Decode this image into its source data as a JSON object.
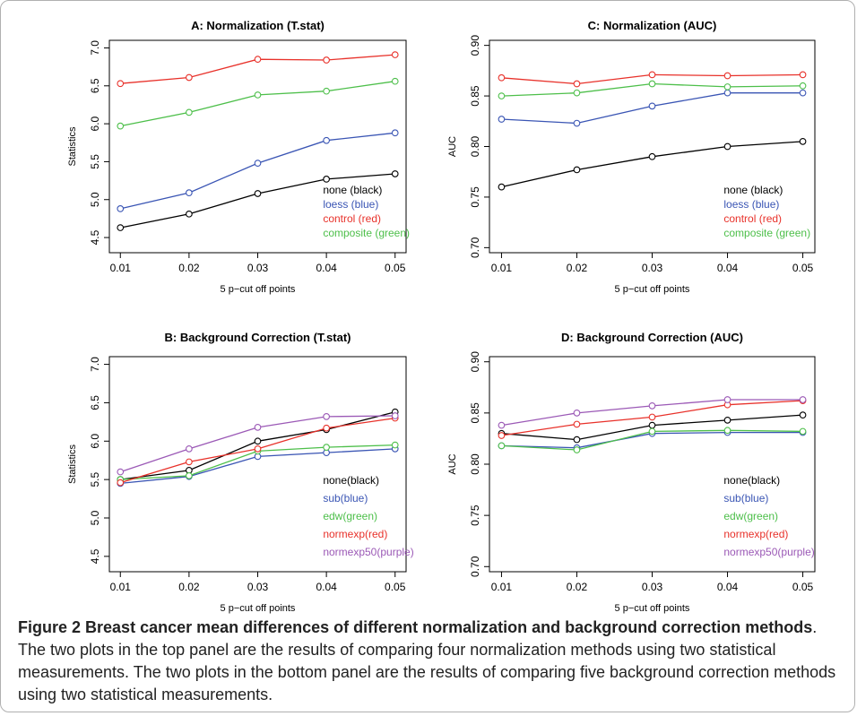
{
  "caption": {
    "label": "Figure 2",
    "title": "Breast cancer mean differences of different normalization and background correction methods",
    "text": ". The two plots in the top panel are the results of comparing four normalization methods using two statistical measurements. The two plots in the bottom panel are the results of comparing five background correction methods using two statistical measurements."
  },
  "chart_data": [
    {
      "type": "line",
      "title": "A: Normalization (T.stat)",
      "xlabel": "5 p−cut off points",
      "ylabel": "Statistics",
      "x": [
        0.01,
        0.02,
        0.03,
        0.04,
        0.05
      ],
      "x_tick_labels": [
        "0.01",
        "0.02",
        "0.03",
        "0.04",
        "0.05"
      ],
      "ylim": [
        4.3,
        7.1
      ],
      "y_ticks": [
        4.5,
        5.0,
        5.5,
        6.0,
        6.5,
        7.0
      ],
      "y_tick_labels": [
        "4.5",
        "5.0",
        "5.5",
        "6.0",
        "6.5",
        "7.0"
      ],
      "legend_position": "bottom-right",
      "series": [
        {
          "name": "none (black)",
          "color": "#000000",
          "values": [
            4.63,
            4.81,
            5.08,
            5.27,
            5.34
          ]
        },
        {
          "name": "loess (blue)",
          "color": "#3a55b4",
          "values": [
            4.88,
            5.09,
            5.48,
            5.78,
            5.88
          ]
        },
        {
          "name": "control (red)",
          "color": "#e8312a",
          "values": [
            6.53,
            6.61,
            6.85,
            6.84,
            6.91
          ]
        },
        {
          "name": "composite (green)",
          "color": "#4dbf4a",
          "values": [
            5.97,
            6.15,
            6.38,
            6.43,
            6.56
          ]
        }
      ]
    },
    {
      "type": "line",
      "title": "C: Normalization (AUC)",
      "xlabel": "5 p−cut off points",
      "ylabel": "AUC",
      "x": [
        0.01,
        0.02,
        0.03,
        0.04,
        0.05
      ],
      "x_tick_labels": [
        "0.01",
        "0.02",
        "0.03",
        "0.04",
        "0.05"
      ],
      "ylim": [
        0.695,
        0.905
      ],
      "y_ticks": [
        0.7,
        0.75,
        0.8,
        0.85,
        0.9
      ],
      "y_tick_labels": [
        "0.70",
        "0.75",
        "0.80",
        "0.85",
        "0.90"
      ],
      "legend_position": "bottom-right",
      "series": [
        {
          "name": "none (black)",
          "color": "#000000",
          "values": [
            0.76,
            0.777,
            0.79,
            0.8,
            0.805
          ]
        },
        {
          "name": "loess (blue)",
          "color": "#3a55b4",
          "values": [
            0.827,
            0.823,
            0.84,
            0.853,
            0.853
          ]
        },
        {
          "name": "control (red)",
          "color": "#e8312a",
          "values": [
            0.868,
            0.862,
            0.871,
            0.87,
            0.871
          ]
        },
        {
          "name": "composite (green)",
          "color": "#4dbf4a",
          "values": [
            0.85,
            0.853,
            0.862,
            0.859,
            0.86
          ]
        }
      ]
    },
    {
      "type": "line",
      "title": "B: Background Correction (T.stat)",
      "xlabel": "5 p−cut off points",
      "ylabel": "Statistics",
      "x": [
        0.01,
        0.02,
        0.03,
        0.04,
        0.05
      ],
      "x_tick_labels": [
        "0.01",
        "0.02",
        "0.03",
        "0.04",
        "0.05"
      ],
      "ylim": [
        4.3,
        7.1
      ],
      "y_ticks": [
        4.5,
        5.0,
        5.5,
        6.0,
        6.5,
        7.0
      ],
      "y_tick_labels": [
        "4.5",
        "5.0",
        "5.5",
        "6.0",
        "6.5",
        "7.0"
      ],
      "legend_position": "bottom-right",
      "series": [
        {
          "name": "none(black)",
          "color": "#000000",
          "values": [
            5.5,
            5.62,
            6.0,
            6.15,
            6.38
          ]
        },
        {
          "name": "sub(blue)",
          "color": "#3a55b4",
          "values": [
            5.45,
            5.54,
            5.8,
            5.85,
            5.9
          ]
        },
        {
          "name": "edw(green)",
          "color": "#4dbf4a",
          "values": [
            5.5,
            5.55,
            5.87,
            5.92,
            5.95
          ]
        },
        {
          "name": "normexp(red)",
          "color": "#e8312a",
          "values": [
            5.46,
            5.73,
            5.9,
            6.17,
            6.3
          ]
        },
        {
          "name": "normexp50(purple)",
          "color": "#9b59b6",
          "values": [
            5.6,
            5.9,
            6.18,
            6.32,
            6.33
          ]
        }
      ]
    },
    {
      "type": "line",
      "title": "D: Background Correction (AUC)",
      "xlabel": "5 p−cut off points",
      "ylabel": "AUC",
      "x": [
        0.01,
        0.02,
        0.03,
        0.04,
        0.05
      ],
      "x_tick_labels": [
        "0.01",
        "0.02",
        "0.03",
        "0.04",
        "0.05"
      ],
      "ylim": [
        0.695,
        0.905
      ],
      "y_ticks": [
        0.7,
        0.75,
        0.8,
        0.85,
        0.9
      ],
      "y_tick_labels": [
        "0.70",
        "0.75",
        "0.80",
        "0.85",
        "0.90"
      ],
      "legend_position": "bottom-right",
      "series": [
        {
          "name": "none(black)",
          "color": "#000000",
          "values": [
            0.83,
            0.824,
            0.838,
            0.843,
            0.848
          ]
        },
        {
          "name": "sub(blue)",
          "color": "#3a55b4",
          "values": [
            0.818,
            0.816,
            0.83,
            0.831,
            0.831
          ]
        },
        {
          "name": "edw(green)",
          "color": "#4dbf4a",
          "values": [
            0.818,
            0.814,
            0.832,
            0.833,
            0.832
          ]
        },
        {
          "name": "normexp(red)",
          "color": "#e8312a",
          "values": [
            0.828,
            0.839,
            0.846,
            0.858,
            0.862
          ]
        },
        {
          "name": "normexp50(purple)",
          "color": "#9b59b6",
          "values": [
            0.838,
            0.85,
            0.857,
            0.863,
            0.863
          ]
        }
      ]
    }
  ]
}
